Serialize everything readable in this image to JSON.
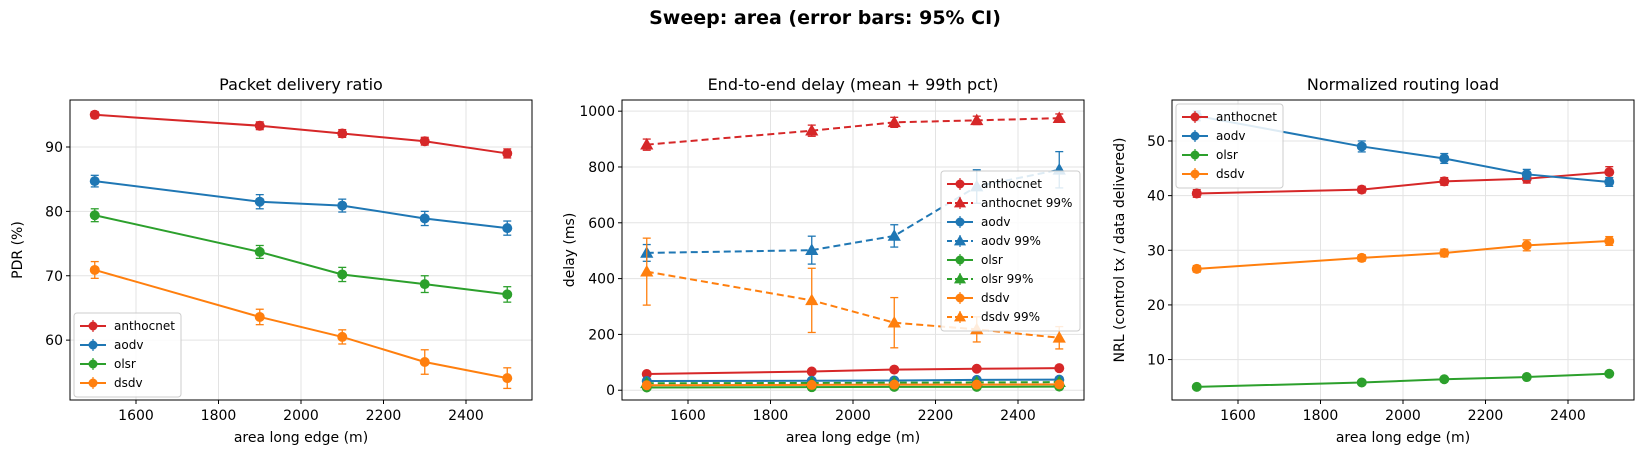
{
  "figure": {
    "suptitle": "Sweep: area  (error bars: 95% CI)"
  },
  "colors": {
    "anthocnet": "#d62728",
    "aodv": "#1f77b4",
    "olsr": "#2ca02c",
    "dsdv": "#ff7f0e"
  },
  "chart_data": [
    {
      "type": "line",
      "title": "Packet delivery ratio",
      "xlabel": "area long edge (m)",
      "ylabel": "PDR (%)",
      "x": [
        1500,
        1900,
        2100,
        2300,
        2500
      ],
      "xlim": [
        1440,
        2560
      ],
      "ylim": [
        50.7,
        97.3
      ],
      "xticks": [
        1600,
        1800,
        2000,
        2200,
        2400
      ],
      "yticks": [
        60,
        70,
        80,
        90
      ],
      "grid": true,
      "legend": "lower-left",
      "series": [
        {
          "name": "anthocnet",
          "color": "#d62728",
          "marker": "circle",
          "dash": false,
          "values": [
            95.0,
            93.3,
            92.1,
            90.9,
            89.0
          ],
          "err": [
            0.5,
            0.6,
            0.6,
            0.6,
            0.7
          ]
        },
        {
          "name": "aodv",
          "color": "#1f77b4",
          "marker": "circle",
          "dash": false,
          "values": [
            84.7,
            81.5,
            80.9,
            78.9,
            77.4
          ],
          "err": [
            0.9,
            1.1,
            1.0,
            1.1,
            1.1
          ]
        },
        {
          "name": "olsr",
          "color": "#2ca02c",
          "marker": "circle",
          "dash": false,
          "values": [
            79.4,
            73.7,
            70.2,
            68.7,
            67.1
          ],
          "err": [
            1.0,
            1.0,
            1.1,
            1.3,
            1.2
          ]
        },
        {
          "name": "dsdv",
          "color": "#ff7f0e",
          "marker": "circle",
          "dash": false,
          "values": [
            70.9,
            63.6,
            60.5,
            56.6,
            54.1
          ],
          "err": [
            1.3,
            1.2,
            1.1,
            1.9,
            1.6
          ]
        }
      ]
    },
    {
      "type": "line",
      "title": "End-to-end delay (mean + 99th pct)",
      "xlabel": "area long edge (m)",
      "ylabel": "delay (ms)",
      "x": [
        1500,
        1900,
        2100,
        2300,
        2500
      ],
      "xlim": [
        1440,
        2560
      ],
      "ylim": [
        -35,
        1040
      ],
      "xticks": [
        1600,
        1800,
        2000,
        2200,
        2400
      ],
      "yticks": [
        0,
        200,
        400,
        600,
        800,
        1000
      ],
      "grid": true,
      "legend": "center-right",
      "series": [
        {
          "name": "anthocnet",
          "color": "#d62728",
          "marker": "circle",
          "dash": false,
          "values": [
            58,
            67,
            74,
            77,
            79
          ],
          "err": [
            3,
            3,
            3,
            3,
            3
          ]
        },
        {
          "name": "anthocnet 99%",
          "color": "#d62728",
          "marker": "triangle",
          "dash": true,
          "values": [
            880,
            930,
            960,
            967,
            975
          ],
          "err": [
            20,
            20,
            18,
            15,
            15
          ]
        },
        {
          "name": "aodv",
          "color": "#1f77b4",
          "marker": "circle",
          "dash": false,
          "values": [
            33,
            34,
            35,
            37,
            38
          ],
          "err": [
            3,
            3,
            3,
            3,
            3
          ]
        },
        {
          "name": "aodv 99%",
          "color": "#1f77b4",
          "marker": "triangle",
          "dash": true,
          "values": [
            492,
            502,
            553,
            730,
            790
          ],
          "err": [
            30,
            50,
            40,
            60,
            65
          ]
        },
        {
          "name": "olsr",
          "color": "#2ca02c",
          "marker": "circle",
          "dash": false,
          "values": [
            10,
            11,
            12,
            12,
            13
          ],
          "err": [
            1,
            1,
            1,
            1,
            1
          ]
        },
        {
          "name": "olsr 99%",
          "color": "#2ca02c",
          "marker": "triangle",
          "dash": true,
          "values": [
            25,
            26,
            27,
            28,
            29
          ],
          "err": [
            3,
            3,
            3,
            3,
            3
          ]
        },
        {
          "name": "dsdv",
          "color": "#ff7f0e",
          "marker": "circle",
          "dash": false,
          "values": [
            18,
            19,
            20,
            20,
            21
          ],
          "err": [
            2,
            2,
            2,
            2,
            2
          ]
        },
        {
          "name": "dsdv 99%",
          "color": "#ff7f0e",
          "marker": "triangle",
          "dash": true,
          "values": [
            425,
            322,
            242,
            218,
            188
          ],
          "err": [
            120,
            115,
            90,
            45,
            40
          ]
        }
      ]
    },
    {
      "type": "line",
      "title": "Normalized routing load",
      "xlabel": "area long edge (m)",
      "ylabel": "NRL (control tx / data delivered)",
      "x": [
        1500,
        1900,
        2100,
        2300,
        2500
      ],
      "xlim": [
        1440,
        2560
      ],
      "ylim": [
        2.6,
        57.5
      ],
      "xticks": [
        1600,
        1800,
        2000,
        2200,
        2400
      ],
      "yticks": [
        10,
        20,
        30,
        40,
        50
      ],
      "grid": true,
      "legend": "upper-left",
      "series": [
        {
          "name": "anthocnet",
          "color": "#d62728",
          "marker": "circle",
          "dash": false,
          "values": [
            40.4,
            41.1,
            42.6,
            43.1,
            44.3
          ],
          "err": [
            0.7,
            0.6,
            0.7,
            0.8,
            1.0
          ]
        },
        {
          "name": "aodv",
          "color": "#1f77b4",
          "marker": "circle",
          "dash": false,
          "values": [
            54.6,
            49.0,
            46.8,
            43.9,
            42.5
          ],
          "err": [
            0.9,
            1.0,
            0.9,
            0.9,
            0.8
          ]
        },
        {
          "name": "olsr",
          "color": "#2ca02c",
          "marker": "circle",
          "dash": false,
          "values": [
            5.0,
            5.8,
            6.4,
            6.8,
            7.4
          ],
          "err": [
            0.3,
            0.3,
            0.3,
            0.3,
            0.3
          ]
        },
        {
          "name": "dsdv",
          "color": "#ff7f0e",
          "marker": "circle",
          "dash": false,
          "values": [
            26.6,
            28.6,
            29.5,
            30.9,
            31.7
          ],
          "err": [
            0.6,
            0.6,
            0.7,
            1.0,
            0.8
          ]
        }
      ]
    }
  ]
}
